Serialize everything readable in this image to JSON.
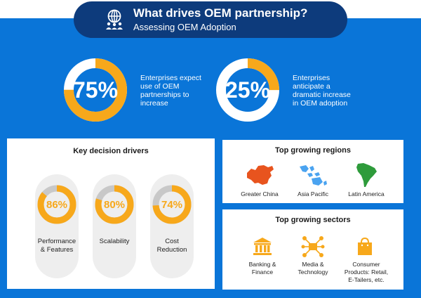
{
  "header": {
    "title": "What drives OEM partnership?",
    "subtitle": "Assessing OEM Adoption",
    "icon": "globe-people-icon"
  },
  "stats": [
    {
      "value": "75%",
      "fraction": 0.75,
      "text": [
        "Enterprises expect",
        "use of OEM",
        "partnerships to",
        "increase"
      ]
    },
    {
      "value": "25%",
      "fraction": 0.25,
      "text": [
        "Enterprises",
        "anticipate a",
        "dramatic increase",
        "in OEM adoption"
      ]
    }
  ],
  "drivers": {
    "title": "Key decision drivers",
    "items": [
      {
        "value": "86%",
        "fraction": 0.86,
        "label": [
          "Performance",
          "& Features"
        ]
      },
      {
        "value": "80%",
        "fraction": 0.8,
        "label": [
          "Scalability"
        ]
      },
      {
        "value": "74%",
        "fraction": 0.74,
        "label": [
          "Cost",
          "Reduction"
        ]
      }
    ]
  },
  "regions": {
    "title": "Top growing regions",
    "items": [
      {
        "label": "Greater China",
        "icon": "china-map-icon",
        "color": "#e8541e"
      },
      {
        "label": "Asia Pacific",
        "icon": "asia-pacific-map-icon",
        "color": "#4aa3f0"
      },
      {
        "label": "Latin America",
        "icon": "latin-america-map-icon",
        "color": "#2e9b3b"
      }
    ]
  },
  "sectors": {
    "title": "Top growing sectors",
    "items": [
      {
        "label": [
          "Banking &",
          "Finance"
        ],
        "icon": "bank-icon"
      },
      {
        "label": [
          "Media &",
          "Technology"
        ],
        "icon": "media-network-icon"
      },
      {
        "label": [
          "Consumer",
          "Products: Retail,",
          "E-Tailers, etc."
        ],
        "icon": "shopping-bag-icon"
      }
    ]
  },
  "colors": {
    "accent": "#f7a81b",
    "blue": "#0a75d8",
    "navy": "#0d3b7c",
    "ring_track": "#ffffff",
    "driver_track": "#c8c8c8"
  }
}
